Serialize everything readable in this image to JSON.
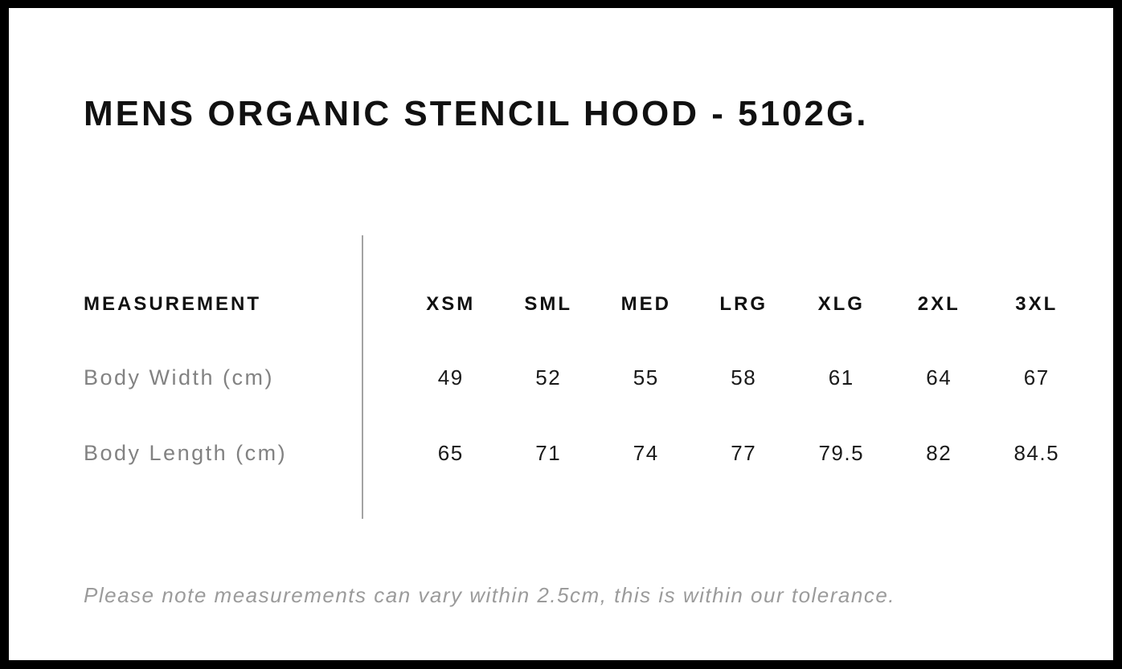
{
  "title": "MENS ORGANIC STENCIL HOOD - 5102G.",
  "table": {
    "measurement_header": "MEASUREMENT",
    "sizes": [
      "XSM",
      "SML",
      "MED",
      "LRG",
      "XLG",
      "2XL",
      "3XL"
    ],
    "rows": [
      {
        "label": "Body Width (cm)",
        "values": [
          "49",
          "52",
          "55",
          "58",
          "61",
          "64",
          "67"
        ]
      },
      {
        "label": "Body Length (cm)",
        "values": [
          "65",
          "71",
          "74",
          "77",
          "79.5",
          "82",
          "84.5"
        ]
      }
    ]
  },
  "footer": {
    "note": "Please note measurements can vary within 2.5cm, this is within our tolerance."
  },
  "colors": {
    "frame": "#000000",
    "heading_text": "#111111",
    "value_text": "#1a1a1a",
    "label_gray": "#828282",
    "note_gray": "#9b9b9b",
    "divider_gray": "#a3a3a3",
    "background": "#ffffff"
  }
}
